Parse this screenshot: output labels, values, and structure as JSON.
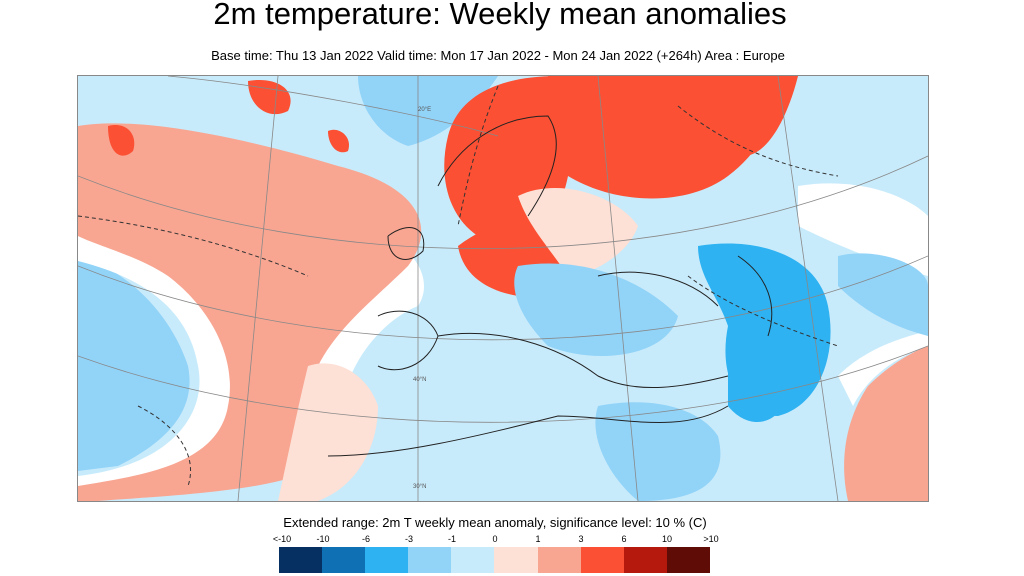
{
  "header": {
    "title": "2m temperature: Weekly mean anomalies",
    "subtitle": "Base time: Thu 13 Jan 2022 Valid time: Mon 17 Jan 2022 - Mon 24 Jan 2022 (+264h) Area : Europe"
  },
  "map": {
    "area": "Europe",
    "meridian_labels": [
      "20°E",
      "40°N",
      "30°N"
    ]
  },
  "legend": {
    "title": "Extended range: 2m T weekly mean anomaly, significance level: 10 % (C)",
    "labels": [
      "<-10",
      "-10",
      "-6",
      "-3",
      "-1",
      "0",
      "1",
      "3",
      "6",
      "10",
      ">10"
    ],
    "colors": [
      "#053061",
      "#0f70b4",
      "#2eb2f2",
      "#92d3f8",
      "#c8ebfb",
      "#fde0d6",
      "#f8a692",
      "#fb5033",
      "#b5180d",
      "#5f0c06"
    ]
  }
}
